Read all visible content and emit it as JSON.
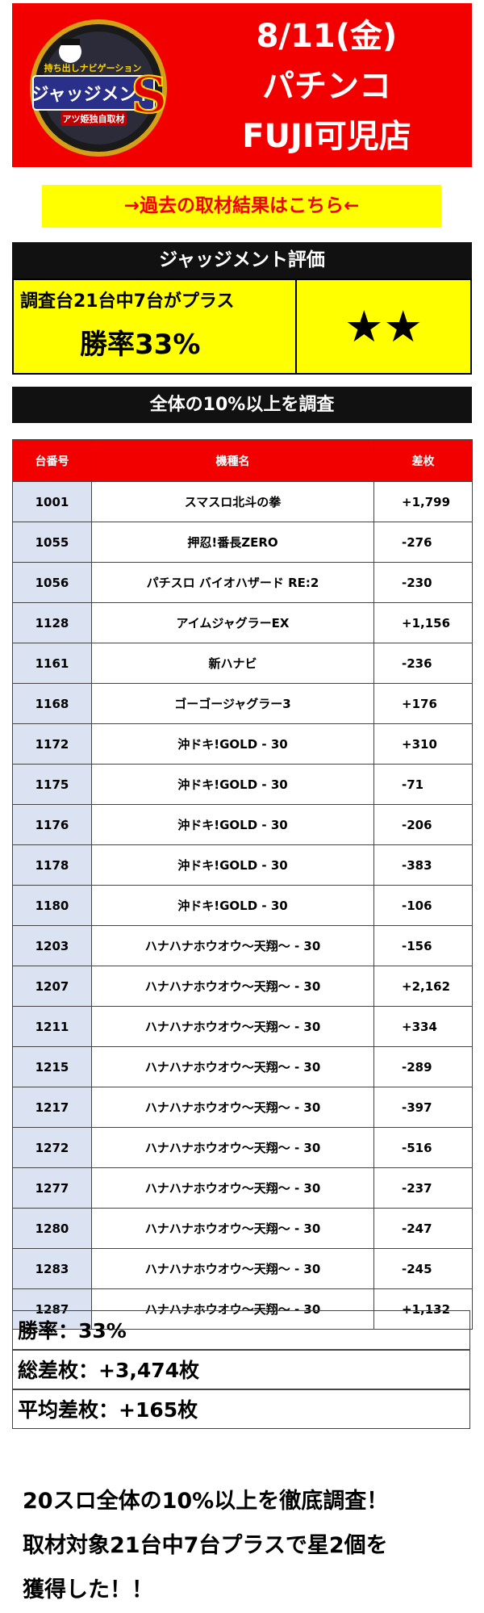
{
  "header": {
    "date": "8/11(金)",
    "category": "パチンコ",
    "store": "FUJI可児店",
    "logo_text": "ジャッジメント",
    "logo_sub": "アツ姫独自取材",
    "logo_top": "持ち出しナビゲーション",
    "logo_letter": "S"
  },
  "link_banner": "→過去の取材結果はこちら←",
  "evaluation": {
    "title": "ジャッジメント評価",
    "line1": "調査台21台中7台がプラス",
    "line2": "勝率33%",
    "stars": "★★",
    "star_count": 2
  },
  "survey_title": "全体の10%以上を調査",
  "table": {
    "headers": [
      "台番号",
      "機種名",
      "差枚"
    ],
    "rows": [
      {
        "id": "1001",
        "name": "スマスロ北斗の拳",
        "diff": "+1,799"
      },
      {
        "id": "1055",
        "name": "押忍!番長ZERO",
        "diff": "-276"
      },
      {
        "id": "1056",
        "name": "パチスロ バイオハザード RE:2",
        "diff": "-230"
      },
      {
        "id": "1128",
        "name": "アイムジャグラーEX",
        "diff": "+1,156"
      },
      {
        "id": "1161",
        "name": "新ハナビ",
        "diff": "-236"
      },
      {
        "id": "1168",
        "name": "ゴーゴージャグラー3",
        "diff": "+176"
      },
      {
        "id": "1172",
        "name": "沖ドキ!GOLD - 30",
        "diff": "+310"
      },
      {
        "id": "1175",
        "name": "沖ドキ!GOLD - 30",
        "diff": "-71"
      },
      {
        "id": "1176",
        "name": "沖ドキ!GOLD - 30",
        "diff": "-206"
      },
      {
        "id": "1178",
        "name": "沖ドキ!GOLD - 30",
        "diff": "-383"
      },
      {
        "id": "1180",
        "name": "沖ドキ!GOLD - 30",
        "diff": "-106"
      },
      {
        "id": "1203",
        "name": "ハナハナホウオウ〜天翔〜 - 30",
        "diff": "-156"
      },
      {
        "id": "1207",
        "name": "ハナハナホウオウ〜天翔〜 - 30",
        "diff": "+2,162"
      },
      {
        "id": "1211",
        "name": "ハナハナホウオウ〜天翔〜 - 30",
        "diff": "+334"
      },
      {
        "id": "1215",
        "name": "ハナハナホウオウ〜天翔〜 - 30",
        "diff": "-289"
      },
      {
        "id": "1217",
        "name": "ハナハナホウオウ〜天翔〜 - 30",
        "diff": "-397"
      },
      {
        "id": "1272",
        "name": "ハナハナホウオウ〜天翔〜 - 30",
        "diff": "-516"
      },
      {
        "id": "1277",
        "name": "ハナハナホウオウ〜天翔〜 - 30",
        "diff": "-237"
      },
      {
        "id": "1280",
        "name": "ハナハナホウオウ〜天翔〜 - 30",
        "diff": "-247"
      },
      {
        "id": "1283",
        "name": "ハナハナホウオウ〜天翔〜 - 30",
        "diff": "-245"
      },
      {
        "id": "1287",
        "name": "ハナハナホウオウ〜天翔〜 - 30",
        "diff": "+1,132"
      }
    ]
  },
  "summary": {
    "win_rate": "勝率：33%",
    "total": "総差枚：+3,474枚",
    "average": "平均差枚：+165枚"
  },
  "footer": {
    "line1": "20スロ全体の10%以上を徹底調査！",
    "line2": "取材対象21台中7台プラスで星2個を",
    "line3": "獲得した！！"
  },
  "colors": {
    "red": "#f20000",
    "yellow": "#ffff00",
    "dark": "#111111",
    "id_cell": "#dbe3f2"
  }
}
